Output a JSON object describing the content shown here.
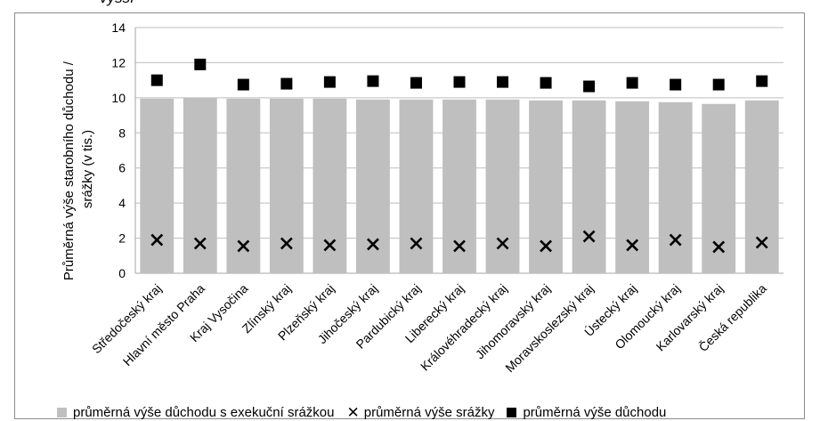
{
  "page_top_text": "vyšší",
  "chart_data": {
    "type": "bar",
    "ylabel_lines": [
      "Průměrná výše starobního důchodu /",
      "srážky (v tis.)"
    ],
    "ylim": [
      0,
      14
    ],
    "yticks": [
      "0",
      "2",
      "4",
      "6",
      "8",
      "10",
      "12",
      "14"
    ],
    "grid": true,
    "legend_position": "bottom",
    "categories": [
      "Středočeský kraj",
      "Hlavní město Praha",
      "Kraj Vysočina",
      "Zlínský kraj",
      "Plzeňský kraj",
      "Jihočeský kraj",
      "Pardubický kraj",
      "Liberecký kraj",
      "Královéhradecký kraj",
      "Jihomoravský kraj",
      "Moravskoslezský kraj",
      "Ústecký kraj",
      "Olomoucký kraj",
      "Karlovarský kraj",
      "Česká republika"
    ],
    "series": [
      {
        "name": "průměrná výše důchodu s exekuční srážkou",
        "kind": "bar",
        "color": "#bfbfbf",
        "values": [
          9.95,
          10.0,
          9.95,
          9.95,
          9.95,
          9.9,
          9.9,
          9.9,
          9.9,
          9.85,
          9.85,
          9.8,
          9.75,
          9.65,
          9.85
        ]
      },
      {
        "name": "průměrná výše srážky",
        "kind": "x-marker",
        "color": "#000000",
        "values": [
          1.9,
          1.7,
          1.55,
          1.7,
          1.6,
          1.65,
          1.7,
          1.55,
          1.7,
          1.55,
          2.1,
          1.6,
          1.9,
          1.5,
          1.75
        ]
      },
      {
        "name": "průměrná výše důchodu",
        "kind": "square-marker",
        "color": "#000000",
        "values": [
          11.0,
          11.9,
          10.75,
          10.8,
          10.9,
          10.95,
          10.85,
          10.9,
          10.9,
          10.85,
          10.65,
          10.85,
          10.75,
          10.75,
          10.95
        ]
      }
    ]
  }
}
